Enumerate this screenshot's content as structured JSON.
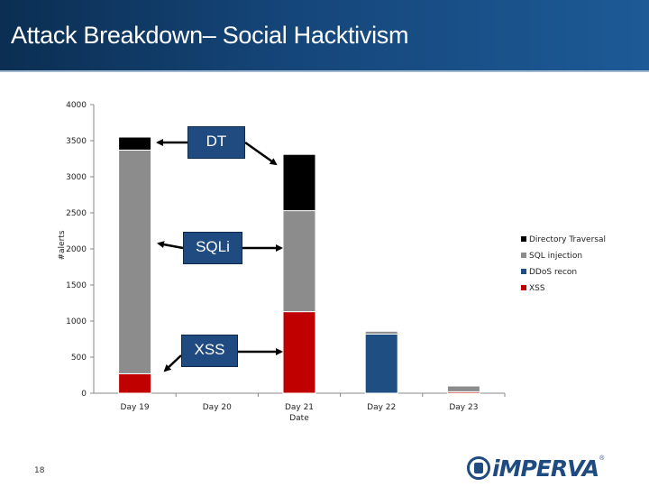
{
  "slide": {
    "title": "Attack Breakdown– Social Hacktivism",
    "page_number": "18",
    "logo_text": "iMPERVA",
    "logo_reg": "®"
  },
  "callouts": {
    "dt": "DT",
    "sqli": "SQLi",
    "xss": "XSS"
  },
  "colors": {
    "directory_traversal": "#000000",
    "sql_injection": "#8c8c8c",
    "ddos_recon": "#1f4e82",
    "xss": "#c00000",
    "title_bar": "#15467a",
    "callout": "#1f4b80"
  },
  "chart_data": {
    "type": "bar",
    "stacked": true,
    "xlabel": "Date",
    "ylabel": "#alerts",
    "ylim": [
      0,
      4000
    ],
    "yticks": [
      0,
      500,
      1000,
      1500,
      2000,
      2500,
      3000,
      3500,
      4000
    ],
    "categories": [
      "Day 19",
      "Day 20",
      "Day 21",
      "Day 22",
      "Day 23"
    ],
    "series": [
      {
        "name": "XSS",
        "color": "#c00000",
        "values": [
          270,
          0,
          1130,
          0,
          20
        ]
      },
      {
        "name": "DDoS recon",
        "color": "#1f4e82",
        "values": [
          0,
          0,
          0,
          820,
          0
        ]
      },
      {
        "name": "SQL injection",
        "color": "#8c8c8c",
        "values": [
          3100,
          0,
          1400,
          40,
          80
        ]
      },
      {
        "name": "Directory Traversal",
        "color": "#000000",
        "values": [
          180,
          0,
          780,
          10,
          0
        ]
      }
    ],
    "legend_order": [
      "Directory Traversal",
      "SQL injection",
      "DDoS recon",
      "XSS"
    ],
    "legend_position": "right",
    "grid": false
  }
}
